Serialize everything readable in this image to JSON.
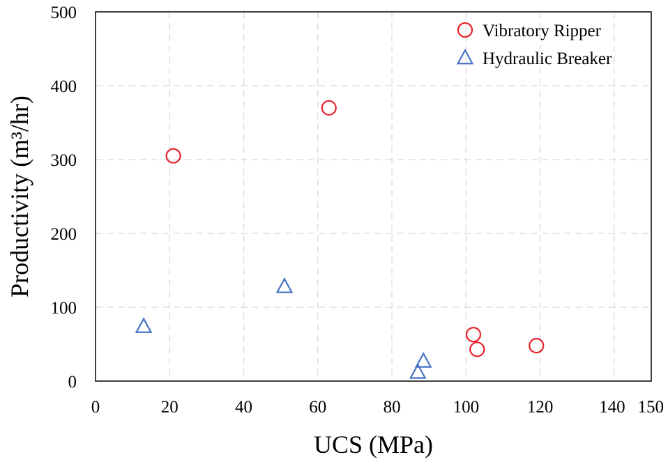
{
  "chart_data": {
    "type": "scatter",
    "title": "",
    "xlabel": "UCS (MPa)",
    "ylabel": "Productivity (m³/hr)",
    "xlim": [
      0,
      150
    ],
    "ylim": [
      0,
      500
    ],
    "x_ticks": [
      0,
      20,
      40,
      60,
      80,
      100,
      120,
      140,
      150
    ],
    "y_ticks": [
      0,
      100,
      200,
      300,
      400,
      500
    ],
    "grid": true,
    "legend_position": "top-right",
    "series": [
      {
        "name": "Vibratory Ripper",
        "marker": "circle",
        "color": "#e8202a",
        "points": [
          {
            "x": 21,
            "y": 305
          },
          {
            "x": 63,
            "y": 370
          },
          {
            "x": 102,
            "y": 63
          },
          {
            "x": 103,
            "y": 43
          },
          {
            "x": 119,
            "y": 48
          }
        ]
      },
      {
        "name": "Hydraulic Breaker",
        "marker": "triangle",
        "color": "#4472c4",
        "points": [
          {
            "x": 13,
            "y": 74
          },
          {
            "x": 51,
            "y": 128
          },
          {
            "x": 87,
            "y": 12
          },
          {
            "x": 88.5,
            "y": 27
          }
        ]
      }
    ]
  }
}
